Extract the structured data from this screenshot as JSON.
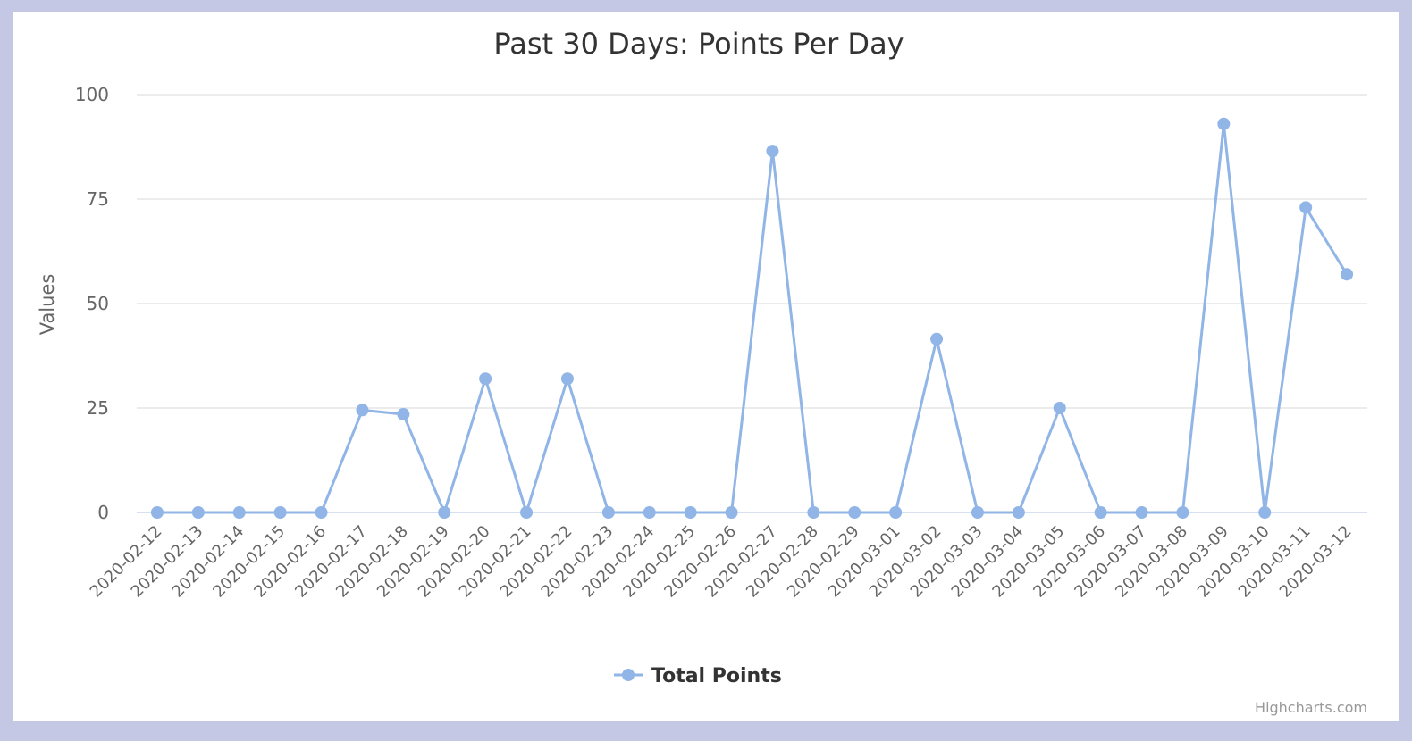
{
  "chart_data": {
    "type": "line",
    "title": "Past 30 Days: Points Per Day",
    "ylabel": "Values",
    "xlabel": "",
    "ylim": [
      0,
      100
    ],
    "yticks": [
      0,
      25,
      50,
      75,
      100
    ],
    "grid": true,
    "legend_position": "bottom-center",
    "categories": [
      "2020-02-12",
      "2020-02-13",
      "2020-02-14",
      "2020-02-15",
      "2020-02-16",
      "2020-02-17",
      "2020-02-18",
      "2020-02-19",
      "2020-02-20",
      "2020-02-21",
      "2020-02-22",
      "2020-02-23",
      "2020-02-24",
      "2020-02-25",
      "2020-02-26",
      "2020-02-27",
      "2020-02-28",
      "2020-02-29",
      "2020-03-01",
      "2020-03-02",
      "2020-03-03",
      "2020-03-04",
      "2020-03-05",
      "2020-03-06",
      "2020-03-07",
      "2020-03-08",
      "2020-03-09",
      "2020-03-10",
      "2020-03-11",
      "2020-03-12"
    ],
    "series": [
      {
        "name": "Total Points",
        "color": "#90b5e6",
        "values": [
          0,
          0,
          0,
          0,
          0,
          24.5,
          23.5,
          0,
          32,
          0,
          32,
          0,
          0,
          0,
          0,
          86.5,
          0,
          0,
          0,
          41.5,
          0,
          0,
          25,
          0,
          0,
          0,
          93,
          0,
          73,
          57
        ]
      }
    ],
    "credits": "Highcharts.com"
  }
}
